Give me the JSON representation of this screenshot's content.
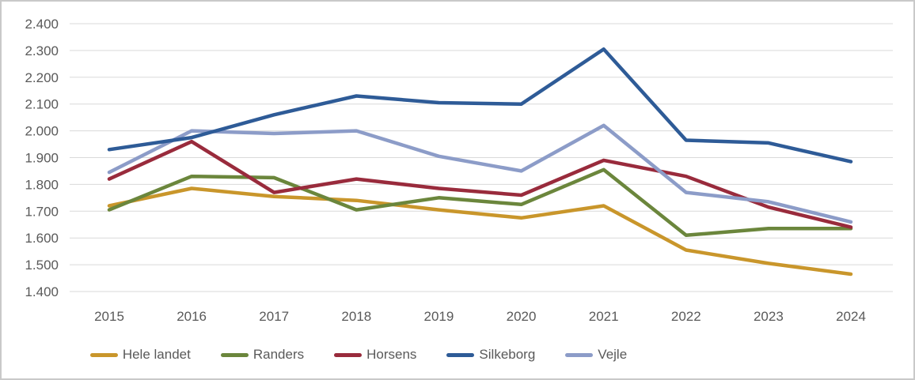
{
  "chart_data": {
    "type": "line",
    "title": "",
    "x_labels": [
      "2015",
      "2016",
      "2017",
      "2018",
      "2019",
      "2020",
      "2021",
      "2022",
      "2023",
      "2024"
    ],
    "series": [
      {
        "name": "Hele landet",
        "color": "#C9962B",
        "values": [
          1720,
          1785,
          1755,
          1740,
          1705,
          1675,
          1720,
          1555,
          1505,
          1465
        ]
      },
      {
        "name": "Randers",
        "color": "#6B863C",
        "values": [
          1705,
          1830,
          1825,
          1705,
          1750,
          1725,
          1855,
          1610,
          1635,
          1635
        ]
      },
      {
        "name": "Horsens",
        "color": "#992B3C",
        "values": [
          1820,
          1960,
          1770,
          1820,
          1785,
          1760,
          1890,
          1830,
          1715,
          1640
        ]
      },
      {
        "name": "Silkeborg",
        "color": "#2E5B97",
        "values": [
          1930,
          1975,
          2060,
          2130,
          2105,
          2100,
          2305,
          1965,
          1955,
          1885
        ]
      },
      {
        "name": "Vejle",
        "color": "#8C9CC8",
        "values": [
          1845,
          2000,
          1990,
          2000,
          1905,
          1850,
          2020,
          1770,
          1735,
          1660
        ]
      }
    ],
    "y_axis": {
      "min": 1400,
      "max": 2400,
      "step": 100,
      "tick_labels": [
        "1.400",
        "1.500",
        "1.600",
        "1.700",
        "1.800",
        "1.900",
        "2.000",
        "2.100",
        "2.200",
        "2.300",
        "2.400"
      ]
    },
    "grid": "horizontal",
    "legend_position": "bottom",
    "draw_order": [
      "Hele landet",
      "Randers",
      "Horsens",
      "Vejle",
      "Silkeborg"
    ]
  },
  "styles": {
    "grid_color": "#D9D9D9",
    "axis_text_color": "#595959",
    "frame_border_color": "#C9C9C9",
    "background_color": "#FFFFFF",
    "line_width": 4.5
  }
}
